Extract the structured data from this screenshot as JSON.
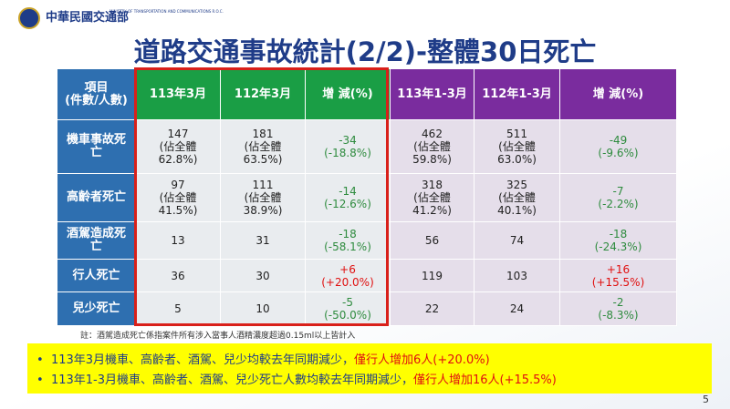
{
  "header": {
    "org_name": "中華民國交通部",
    "org_english": "MINISTRY OF TRANSPORTATION AND COMMUNICATIONS R.O.C."
  },
  "title": "道路交通事故統計(2/2)-整體30日死亡",
  "table": {
    "header": [
      "項目\n(件數/人數)",
      "113年3月",
      "112年3月",
      "增 減(%)",
      "113年1-3月",
      "112年1-3月",
      "增 減(%)"
    ],
    "rows": [
      [
        "機車事故死\n亡",
        "147\n(佔全體\n62.8%)",
        "181\n(佔全體\n63.5%)",
        "-34\n(-18.8%)",
        "462\n(佔全體\n59.8%)",
        "511\n(佔全體\n63.0%)",
        "-49\n(-9.6%)"
      ],
      [
        "高齡者死亡",
        "97\n(佔全體\n41.5%)",
        "111\n(佔全體\n38.9%)",
        "-14\n(-12.6%)",
        "318\n(佔全體\n41.2%)",
        "325\n(佔全體\n40.1%)",
        "-7\n(-2.2%)"
      ],
      [
        "酒駕造成死\n亡",
        "13",
        "31",
        "-18\n(-58.1%)",
        "56",
        "74",
        "-18\n(-24.3%)"
      ],
      [
        "行人死亡",
        "36",
        "30",
        "+6\n(+20.0%)",
        "119",
        "103",
        "+16\n(+15.5%)"
      ],
      [
        "兒少死亡",
        "5",
        "10",
        "-5\n(-50.0%)",
        "22",
        "24",
        "-2\n(-8.3%)"
      ]
    ]
  },
  "note": "註：酒駕造成死亡係指案件所有涉入當事人酒精濃度超過0.15ml以上皆計入",
  "bullets": [
    {
      "text": "113年3月機車、高齡者、酒駕、兒少均較去年同期減少，",
      "highlight": "僅行人增加6人(+20.0%)"
    },
    {
      "text": "113年1-3月機車、高齡者、酒駕、兒少死亡人數均較去年同期減少，",
      "highlight": "僅行人增加16人(+15.5%)"
    }
  ],
  "page_number": "5"
}
